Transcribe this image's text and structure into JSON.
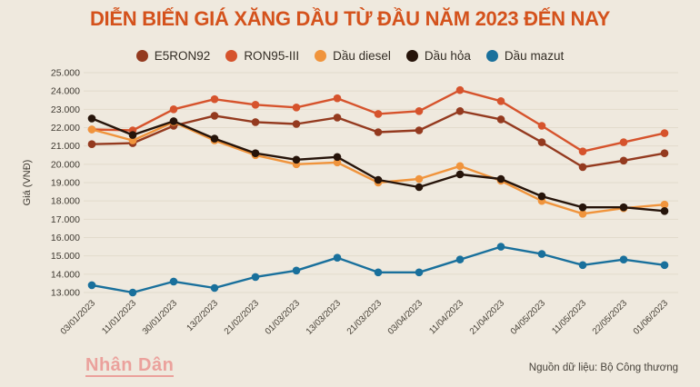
{
  "title": "DIỄN BIẾN GIÁ XĂNG DẦU TỪ ĐẦU NĂM 2023 ĐẾN NAY",
  "footer": {
    "logo": "Nhân Dân",
    "source": "Nguồn dữ liệu: Bộ Công thương"
  },
  "colors": {
    "background": "#efe9de",
    "title": "#d4521c",
    "grid": "#e2dbcc",
    "axis_text": "#3f3a32"
  },
  "chart_data": {
    "type": "line",
    "title": "DIỄN BIẾN GIÁ XĂNG DẦU TỪ ĐẦU NĂM 2023 ĐẾN NAY",
    "xlabel": "",
    "ylabel": "Giá (VNĐ)",
    "ylim": [
      13000,
      25000
    ],
    "y_tick_step": 1000,
    "y_tick_labels": [
      "25.000",
      "24.000",
      "23.000",
      "22.000",
      "21.000",
      "20.000",
      "19.000",
      "18.000",
      "17.000",
      "16.000",
      "15.000",
      "14.000",
      "13.000"
    ],
    "grid": "horizontal",
    "legend_position": "top",
    "categories": [
      "03/01/2023",
      "11/01/2023",
      "30/01/2023",
      "13/2/2023",
      "21/02/2023",
      "01/03/2023",
      "13/03/2023",
      "21/03/2023",
      "03/04/2023",
      "11/04/2023",
      "21/04/2023",
      "04/05/2023",
      "11/05/2023",
      "22/05/2023",
      "01/06/2023"
    ],
    "series": [
      {
        "name": "E5RON92",
        "color": "#943a1f",
        "values": [
          21100,
          21150,
          22100,
          22650,
          22300,
          22200,
          22550,
          21750,
          21850,
          22900,
          22450,
          21200,
          19850,
          20200,
          20600
        ]
      },
      {
        "name": "RON95-III",
        "color": "#d6532c",
        "values": [
          21900,
          21850,
          23000,
          23550,
          23250,
          23100,
          23600,
          22750,
          22900,
          24050,
          23450,
          22100,
          20700,
          21200,
          21700
        ]
      },
      {
        "name": "Dầu diesel",
        "color": "#f0943c",
        "values": [
          21900,
          21300,
          22300,
          21300,
          20500,
          20000,
          20100,
          19000,
          19200,
          19900,
          19100,
          18000,
          17300,
          17600,
          17800
        ]
      },
      {
        "name": "Dầu hỏa",
        "color": "#26140a",
        "values": [
          22500,
          21600,
          22350,
          21400,
          20600,
          20250,
          20400,
          19150,
          18750,
          19450,
          19200,
          18250,
          17650,
          17650,
          17450
        ]
      },
      {
        "name": "Dầu mazut",
        "color": "#19709c",
        "values": [
          13400,
          13000,
          13600,
          13250,
          13850,
          14200,
          14900,
          14100,
          14100,
          14800,
          15500,
          15100,
          14500,
          14800,
          14500
        ]
      }
    ]
  }
}
